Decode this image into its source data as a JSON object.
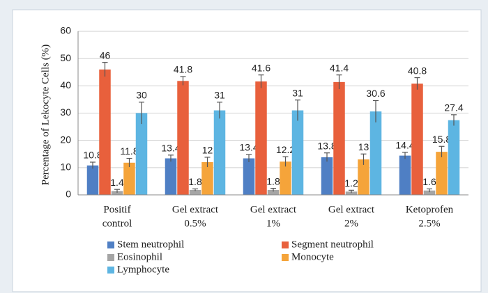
{
  "chart_data": {
    "type": "bar",
    "ylabel": "Percentage of Lekocyte Cells (%)",
    "categories": [
      [
        "Positif",
        "control"
      ],
      [
        "Gel extract",
        "0.5%"
      ],
      [
        "Gel extract",
        "1%"
      ],
      [
        "Gel extract",
        "2%"
      ],
      [
        "Ketoprofen",
        "2.5%"
      ]
    ],
    "series": [
      {
        "name": "Stem neutrophil",
        "color": "#4f7fc4",
        "values": [
          10.8,
          13.4,
          13.4,
          13.8,
          14.4
        ],
        "errors": [
          1.2,
          1.2,
          1.4,
          1.6,
          1.2
        ]
      },
      {
        "name": "Segment neutrophil",
        "color": "#e8603c",
        "values": [
          46,
          41.8,
          41.6,
          41.4,
          40.8
        ],
        "errors": [
          2.6,
          1.6,
          2.4,
          2.6,
          2.2
        ]
      },
      {
        "name": "Eosinophil",
        "color": "#a5a5a5",
        "values": [
          1.4,
          1.8,
          1.8,
          1.2,
          1.6
        ],
        "errors": [
          0.6,
          0.4,
          0.6,
          0.5,
          0.6
        ]
      },
      {
        "name": "Monocyte",
        "color": "#f5a43a",
        "values": [
          11.8,
          12,
          12.2,
          13,
          15.8
        ],
        "errors": [
          1.6,
          1.8,
          1.8,
          2,
          2
        ]
      },
      {
        "name": "Lymphocyte",
        "color": "#5db5e2",
        "values": [
          30,
          31,
          31,
          30.6,
          27.4
        ],
        "errors": [
          4,
          3,
          3.8,
          4,
          2
        ]
      }
    ],
    "ylim": [
      0,
      60
    ],
    "yticks": [
      0,
      10,
      20,
      30,
      40,
      50,
      60
    ],
    "grid": true
  }
}
